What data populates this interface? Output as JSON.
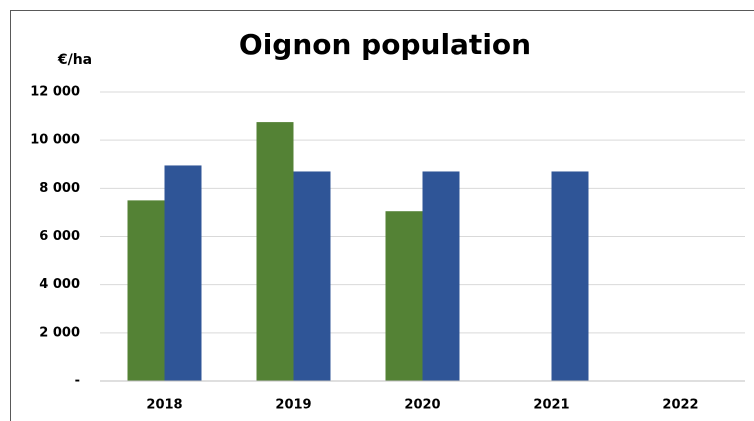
{
  "chart_data": {
    "type": "bar",
    "title": "Oignon population",
    "y_label": "€/ha",
    "categories": [
      "2018",
      "2019",
      "2020",
      "2021",
      "2022"
    ],
    "series": [
      {
        "color": "#548235",
        "values": [
          7500,
          10750,
          7050,
          null,
          null
        ]
      },
      {
        "color": "#2f5597",
        "values": [
          8950,
          8700,
          8700,
          8700,
          null
        ]
      }
    ],
    "ylim": [
      0,
      12000
    ],
    "yticks": [
      {
        "value": 0,
        "label": "-"
      },
      {
        "value": 2000,
        "label": "2 000"
      },
      {
        "value": 4000,
        "label": "4 000"
      },
      {
        "value": 6000,
        "label": "6 000"
      },
      {
        "value": 8000,
        "label": "8 000"
      },
      {
        "value": 10000,
        "label": "10 000"
      },
      {
        "value": 12000,
        "label": "12 000"
      }
    ],
    "grid": true
  }
}
